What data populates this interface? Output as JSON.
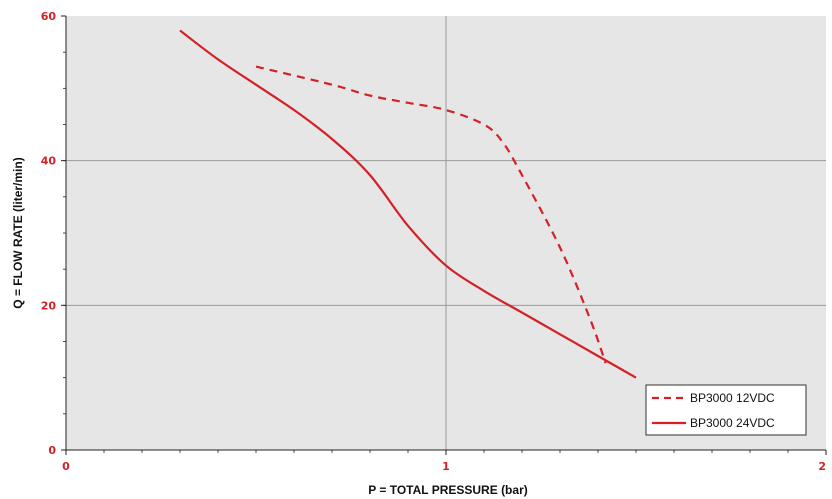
{
  "chart_data": {
    "type": "line",
    "title": "",
    "xlabel": "P = TOTAL PRESSURE (bar)",
    "ylabel": "Q = FLOW RATE (liter/min)",
    "xlim": [
      0,
      2
    ],
    "ylim": [
      0,
      60
    ],
    "xticks": [
      0,
      1,
      2
    ],
    "yticks": [
      0,
      20,
      40,
      60
    ],
    "x_tick_labels": [
      "0",
      "1",
      "2"
    ],
    "y_tick_labels": [
      "0",
      "20",
      "40",
      "60"
    ],
    "grid": "major ticks only",
    "legend_position": "bottom-right",
    "plot_background": "#e6e6e6",
    "line_color": "#d42027",
    "series": [
      {
        "name": "BP3000 12VDC",
        "style": "dashed",
        "points": [
          [
            0.5,
            53
          ],
          [
            0.7,
            50.5
          ],
          [
            0.8,
            49
          ],
          [
            0.9,
            48
          ],
          [
            1.0,
            47
          ],
          [
            1.1,
            45
          ],
          [
            1.15,
            42.5
          ],
          [
            1.2,
            38
          ],
          [
            1.3,
            28
          ],
          [
            1.38,
            18
          ],
          [
            1.42,
            12
          ]
        ]
      },
      {
        "name": "BP3000 24VDC",
        "style": "solid",
        "points": [
          [
            0.3,
            58
          ],
          [
            0.4,
            54
          ],
          [
            0.5,
            50.5
          ],
          [
            0.6,
            47
          ],
          [
            0.7,
            43
          ],
          [
            0.8,
            38
          ],
          [
            0.9,
            31
          ],
          [
            1.0,
            25.5
          ],
          [
            1.1,
            22
          ],
          [
            1.2,
            19
          ],
          [
            1.3,
            16
          ],
          [
            1.4,
            13
          ],
          [
            1.5,
            10
          ]
        ]
      }
    ]
  }
}
